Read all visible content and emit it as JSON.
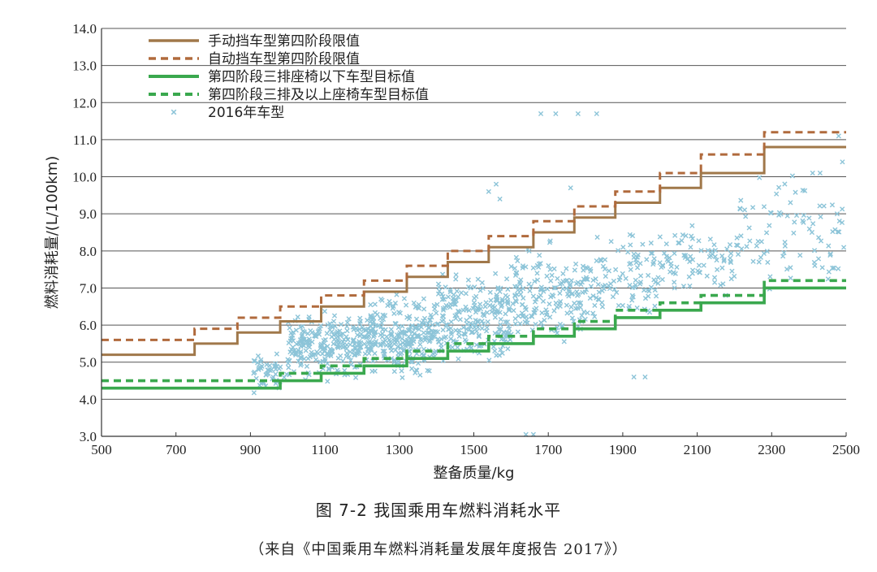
{
  "chart_data": {
    "type": "line",
    "title": "图 7-2   我国乘用车燃料消耗水平",
    "source": "（来自《中国乘用车燃料消耗量发展年度报告 2017》）",
    "xlabel": "整备质量/kg",
    "ylabel": "燃料消耗量/(L/100km)",
    "xlim": [
      500,
      2500
    ],
    "ylim": [
      3.0,
      14.0
    ],
    "xticks": [
      500,
      700,
      900,
      1100,
      1300,
      1500,
      1700,
      1900,
      2100,
      2300,
      2500
    ],
    "yticks": [
      "3.0",
      "4.0",
      "5.0",
      "6.0",
      "7.0",
      "8.0",
      "9.0",
      "10.0",
      "11.0",
      "12.0",
      "13.0",
      "14.0"
    ],
    "grid": "horizontal",
    "legend_position": "top-left",
    "colors": {
      "manual": "#a0784a",
      "auto": "#b06a3c",
      "target_low": "#3aa84e",
      "target_high": "#3aa84e",
      "scatter": "#8cc4d8"
    },
    "series": [
      {
        "name": "手动挡车型第四阶段限值",
        "style": "solid",
        "breaks": [
          500,
          750,
          865,
          980,
          1090,
          1205,
          1320,
          1430,
          1540,
          1660,
          1770,
          1880,
          2000,
          2110,
          2280,
          2510
        ],
        "values": [
          5.2,
          5.5,
          5.8,
          6.1,
          6.5,
          6.9,
          7.3,
          7.7,
          8.1,
          8.5,
          8.9,
          9.3,
          9.7,
          10.1,
          10.8
        ]
      },
      {
        "name": "自动挡车型第四阶段限值",
        "style": "dashed",
        "breaks": [
          500,
          750,
          865,
          980,
          1090,
          1205,
          1320,
          1430,
          1540,
          1660,
          1770,
          1880,
          2000,
          2110,
          2280,
          2510
        ],
        "values": [
          5.6,
          5.9,
          6.2,
          6.5,
          6.8,
          7.2,
          7.6,
          8.0,
          8.4,
          8.8,
          9.2,
          9.6,
          10.1,
          10.6,
          11.2
        ]
      },
      {
        "name": "第四阶段三排座椅以下车型目标值",
        "style": "solid",
        "breaks": [
          500,
          980,
          1090,
          1205,
          1320,
          1430,
          1540,
          1660,
          1770,
          1880,
          2000,
          2110,
          2280,
          2510
        ],
        "values": [
          4.3,
          4.5,
          4.7,
          4.9,
          5.1,
          5.3,
          5.5,
          5.7,
          5.9,
          6.2,
          6.4,
          6.6,
          7.0
        ]
      },
      {
        "name": "第四阶段三排及以上座椅车型目标值",
        "style": "dashed",
        "breaks": [
          500,
          980,
          1090,
          1205,
          1320,
          1430,
          1540,
          1660,
          1770,
          1880,
          2000,
          2110,
          2280,
          2510
        ],
        "values": [
          4.5,
          4.7,
          4.9,
          5.1,
          5.3,
          5.5,
          5.7,
          5.9,
          6.1,
          6.4,
          6.6,
          6.8,
          7.2
        ]
      },
      {
        "name": "2016年车型",
        "style": "scatter",
        "clusters": [
          {
            "x": [
              900,
              1000
            ],
            "y": [
              4.0,
              5.4
            ],
            "n": 50
          },
          {
            "x": [
              1000,
              1200
            ],
            "y": [
              4.3,
              6.6
            ],
            "n": 230
          },
          {
            "x": [
              1200,
              1400
            ],
            "y": [
              4.4,
              7.0
            ],
            "n": 270
          },
          {
            "x": [
              1400,
              1600
            ],
            "y": [
              4.4,
              7.8
            ],
            "n": 230
          },
          {
            "x": [
              1600,
              1800
            ],
            "y": [
              5.0,
              8.5
            ],
            "n": 170
          },
          {
            "x": [
              1800,
              2000
            ],
            "y": [
              5.8,
              8.8
            ],
            "n": 110
          },
          {
            "x": [
              2000,
              2200
            ],
            "y": [
              6.4,
              9.2
            ],
            "n": 80
          },
          {
            "x": [
              2200,
              2500
            ],
            "y": [
              6.2,
              10.6
            ],
            "n": 90
          }
        ],
        "points": [
          {
            "x": 1680,
            "y": 11.7
          },
          {
            "x": 1720,
            "y": 11.7
          },
          {
            "x": 1780,
            "y": 11.7
          },
          {
            "x": 1830,
            "y": 11.7
          },
          {
            "x": 1540,
            "y": 9.6
          },
          {
            "x": 1560,
            "y": 9.8
          },
          {
            "x": 1570,
            "y": 9.4
          },
          {
            "x": 1760,
            "y": 9.7
          },
          {
            "x": 1930,
            "y": 4.6
          },
          {
            "x": 1960,
            "y": 4.6
          },
          {
            "x": 1640,
            "y": 3.05
          },
          {
            "x": 1660,
            "y": 3.05
          },
          {
            "x": 2480,
            "y": 11.1
          },
          {
            "x": 2490,
            "y": 10.4
          },
          {
            "x": 2410,
            "y": 10.1
          },
          {
            "x": 2430,
            "y": 10.1
          }
        ]
      }
    ]
  }
}
